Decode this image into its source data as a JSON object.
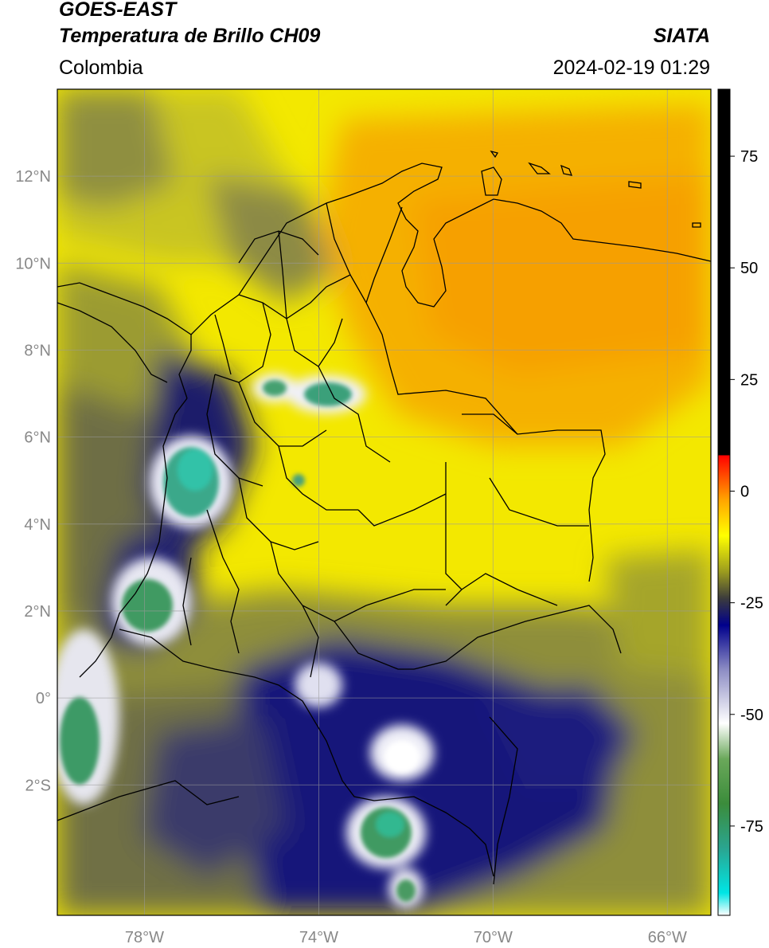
{
  "header": {
    "satellite": "GOES-EAST",
    "product": "Temperatura de Brillo CH09",
    "region": "Colombia",
    "agency": "SIATA",
    "datetime": "2024-02-19 01:29"
  },
  "map": {
    "lon_range": [
      -80,
      -65
    ],
    "lat_range": [
      -5,
      14
    ],
    "lon_ticks": [
      {
        "value": -78,
        "label": "78°W"
      },
      {
        "value": -74,
        "label": "74°W"
      },
      {
        "value": -70,
        "label": "70°W"
      },
      {
        "value": -66,
        "label": "66°W"
      }
    ],
    "lat_ticks": [
      {
        "value": 12,
        "label": "12°N"
      },
      {
        "value": 10,
        "label": "10°N"
      },
      {
        "value": 8,
        "label": "8°N"
      },
      {
        "value": 6,
        "label": "6°N"
      },
      {
        "value": 4,
        "label": "4°N"
      },
      {
        "value": 2,
        "label": "2°N"
      },
      {
        "value": 0,
        "label": "0°"
      },
      {
        "value": -2,
        "label": "2°S"
      }
    ],
    "grid": true
  },
  "colorbar": {
    "range": [
      -95,
      90
    ],
    "ticks": [
      {
        "value": 75,
        "label": "75"
      },
      {
        "value": 50,
        "label": "50"
      },
      {
        "value": 25,
        "label": "25"
      },
      {
        "value": 0,
        "label": "0"
      },
      {
        "value": -25,
        "label": "-25"
      },
      {
        "value": -50,
        "label": "-50"
      },
      {
        "value": -75,
        "label": "-75"
      }
    ],
    "stops": [
      {
        "value": -95,
        "color": "#ffffff"
      },
      {
        "value": -90,
        "color": "#00e5e5"
      },
      {
        "value": -80,
        "color": "#2aa590"
      },
      {
        "value": -70,
        "color": "#3b8c3b"
      },
      {
        "value": -60,
        "color": "#6aa85a"
      },
      {
        "value": -52,
        "color": "#ffffff"
      },
      {
        "value": -40,
        "color": "#8d8dc4"
      },
      {
        "value": -30,
        "color": "#00008c"
      },
      {
        "value": -24,
        "color": "#3c3c3c"
      },
      {
        "value": -18,
        "color": "#9c9c1e"
      },
      {
        "value": -10,
        "color": "#ffff00"
      },
      {
        "value": -2,
        "color": "#ffa500"
      },
      {
        "value": 8,
        "color": "#ff0000"
      },
      {
        "value": 8.01,
        "color": "#000000"
      },
      {
        "value": 90,
        "color": "#000000"
      }
    ]
  },
  "colors": {
    "warm_orange": "#f5a800",
    "yellow": "#ffff00",
    "olive": "#a5a52a",
    "navy": "#0a0a7a",
    "green": "#3a9a5a",
    "border": "#000000"
  }
}
